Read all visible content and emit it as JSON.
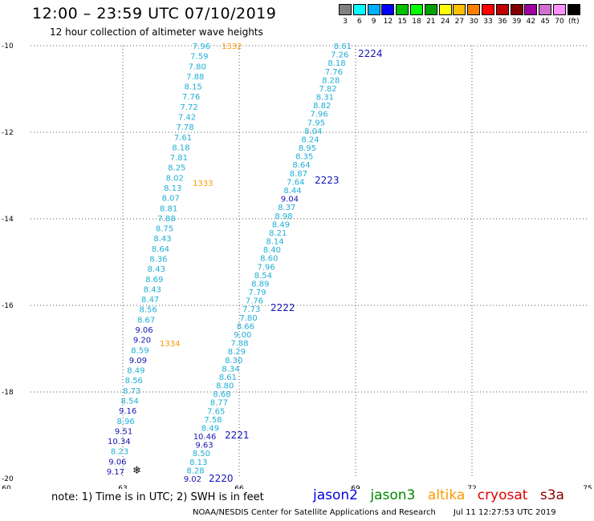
{
  "header": {
    "title": "12:00 – 23:59 UTC 07/10/2019",
    "subtitle": "12 hour collection of altimeter wave heights"
  },
  "colorbar": {
    "colors": [
      "#808080",
      "#00ffff",
      "#00b0ff",
      "#0000ff",
      "#00c000",
      "#00ff00",
      "#00a000",
      "#ffff00",
      "#ffc000",
      "#ff8000",
      "#ff0000",
      "#c00000",
      "#800000",
      "#a000a0",
      "#d070d0",
      "#ff90ff",
      "#000000"
    ],
    "labels": [
      "3",
      "6",
      "9",
      "12",
      "15",
      "18",
      "21",
      "24",
      "27",
      "30",
      "33",
      "36",
      "39",
      "42",
      "45",
      "70",
      "(ft)"
    ]
  },
  "axes": {
    "x_ticks": [
      "60",
      "63",
      "66",
      "69",
      "72",
      "75"
    ],
    "y_ticks": [
      "-10",
      "-12",
      "-14",
      "-16",
      "-18",
      "-20"
    ]
  },
  "colors": {
    "cyan": "#1eaed6",
    "dark_blue": "#1414b4",
    "orange": "#ff9900"
  },
  "tracks": [
    {
      "values": [
        "9.17",
        "9.06",
        "8.23",
        "10.34",
        "9.51",
        "8.96",
        "9.16",
        "8.54",
        "8.73",
        "8.56",
        "8.49",
        "9.09",
        "8.59",
        "9.20",
        "9.06",
        "8.67",
        "8.56",
        "8.47",
        "8.43",
        "8.69",
        "8.43",
        "8.36",
        "8.64",
        "8.43",
        "8.75",
        "7.88",
        "8.81",
        "8.07",
        "8.13",
        "8.02",
        "8.25",
        "7.81",
        "8.18",
        "7.61",
        "7.78",
        "7.42",
        "7.72",
        "7.76",
        "8.15",
        "7.88",
        "7.80",
        "7.59",
        "7.96"
      ],
      "pass_labels": [
        "1333",
        "1334"
      ],
      "top_label": "1332",
      "marker": "❄"
    },
    {
      "values": [
        "9.02",
        "8.28",
        "8.13",
        "8.50",
        "9.63",
        "10.46",
        "8.49",
        "7.58",
        "7.65",
        "8.77",
        "8.68",
        "8.80",
        "8.61",
        "8.34",
        "8.30",
        "8.29",
        "7.88",
        "9.00",
        "8.66",
        "7.80",
        "7.73",
        "7.76",
        "7.79",
        "8.89",
        "8.54",
        "7.96",
        "8.60",
        "8.40",
        "8.14",
        "8.21",
        "8.49",
        "8.98",
        "8.37",
        "9.04",
        "8.44",
        "7.64",
        "8.87",
        "8.64",
        "8.35",
        "8.95",
        "8.24",
        "8.04",
        "7.95",
        "7.96",
        "8.82",
        "8.31",
        "7.82",
        "8.28",
        "7.76",
        "8.18",
        "7.26",
        "8.61"
      ],
      "pass_labels": [
        "2220",
        "2221",
        "2222",
        "2223",
        "2224"
      ]
    }
  ],
  "note": "note:  1) Time is in UTC;  2) SWH is in feet",
  "legend": [
    "jason2",
    "jason3",
    "altika",
    "cryosat",
    "s3a"
  ],
  "legend_colors": [
    "#0000e0",
    "#008800",
    "#ff9900",
    "#dd0000",
    "#880000"
  ],
  "credit": {
    "org": "NOAA/NESDIS Center for Satellite Applications and Research",
    "timestamp": "Jul 11 12:27:53 UTC 2019"
  }
}
